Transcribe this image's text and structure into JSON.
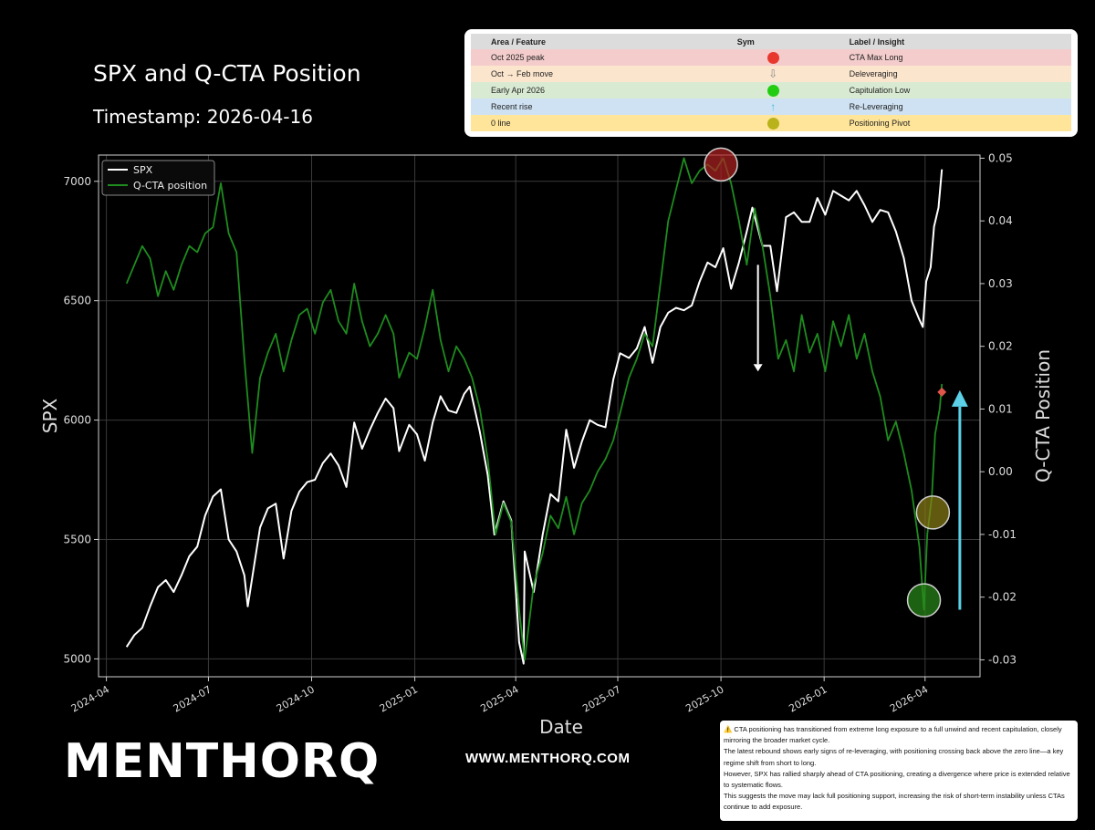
{
  "header": {
    "title": "SPX and Q-CTA Position",
    "timestamp": "Timestamp: 2026-04-16"
  },
  "table": {
    "headers": [
      "Area / Feature",
      "Sym",
      "Label / Insight"
    ],
    "rows": [
      {
        "area": "Oct 2025 peak",
        "sym": "red-circle",
        "label": "CTA Max Long",
        "bg": "#f4cccc"
      },
      {
        "area": "Oct → Feb move",
        "sym": "down-arrow",
        "label": "Deleveraging",
        "bg": "#fce5cd"
      },
      {
        "area": "Early Apr 2026",
        "sym": "green-circle",
        "label": "Capitulation Low",
        "bg": "#d9ead3"
      },
      {
        "area": "Recent rise",
        "sym": "up-arrow",
        "label": "Re-Leveraging",
        "bg": "#cfe2f3"
      },
      {
        "area": "0 line",
        "sym": "olive-circle",
        "label": "Positioning Pivot",
        "bg": "#ffe599"
      }
    ]
  },
  "chart_data": {
    "type": "line",
    "xlabel": "Date",
    "ylabel_left": "SPX",
    "ylabel_right": "Q-CTA Position",
    "xlim": [
      "2024-03-25",
      "2026-05-20"
    ],
    "ylim_left": [
      4925,
      7110
    ],
    "ylim_right": [
      -0.0327,
      0.0505
    ],
    "x_ticks": [
      "2024-04",
      "2024-07",
      "2024-10",
      "2025-01",
      "2025-04",
      "2025-07",
      "2025-10",
      "2026-01",
      "2026-04"
    ],
    "y_ticks_left": [
      5000,
      5500,
      6000,
      6500,
      7000
    ],
    "y_ticks_right": [
      -0.03,
      -0.02,
      -0.01,
      0.0,
      0.01,
      0.02,
      0.03,
      0.04,
      0.05
    ],
    "grid": true,
    "legend": {
      "position": "top-left",
      "entries": [
        "SPX",
        "Q-CTA position"
      ]
    },
    "series": [
      {
        "name": "SPX",
        "color": "#ffffff",
        "axis": "left",
        "points": [
          [
            "2024-04-19",
            5050
          ],
          [
            "2024-04-26",
            5100
          ],
          [
            "2024-05-03",
            5130
          ],
          [
            "2024-05-10",
            5220
          ],
          [
            "2024-05-17",
            5300
          ],
          [
            "2024-05-24",
            5330
          ],
          [
            "2024-05-31",
            5280
          ],
          [
            "2024-06-07",
            5350
          ],
          [
            "2024-06-14",
            5430
          ],
          [
            "2024-06-21",
            5470
          ],
          [
            "2024-06-28",
            5600
          ],
          [
            "2024-07-05",
            5680
          ],
          [
            "2024-07-12",
            5710
          ],
          [
            "2024-07-19",
            5500
          ],
          [
            "2024-07-26",
            5450
          ],
          [
            "2024-08-02",
            5350
          ],
          [
            "2024-08-05",
            5220
          ],
          [
            "2024-08-09",
            5340
          ],
          [
            "2024-08-16",
            5550
          ],
          [
            "2024-08-23",
            5630
          ],
          [
            "2024-08-30",
            5650
          ],
          [
            "2024-09-06",
            5420
          ],
          [
            "2024-09-13",
            5620
          ],
          [
            "2024-09-20",
            5700
          ],
          [
            "2024-09-27",
            5740
          ],
          [
            "2024-10-04",
            5750
          ],
          [
            "2024-10-11",
            5820
          ],
          [
            "2024-10-18",
            5860
          ],
          [
            "2024-10-25",
            5810
          ],
          [
            "2024-11-01",
            5720
          ],
          [
            "2024-11-08",
            5990
          ],
          [
            "2024-11-15",
            5880
          ],
          [
            "2024-11-22",
            5960
          ],
          [
            "2024-11-29",
            6030
          ],
          [
            "2024-12-06",
            6090
          ],
          [
            "2024-12-13",
            6050
          ],
          [
            "2024-12-18",
            5870
          ],
          [
            "2024-12-27",
            5980
          ],
          [
            "2025-01-03",
            5940
          ],
          [
            "2025-01-10",
            5830
          ],
          [
            "2025-01-17",
            5990
          ],
          [
            "2025-01-24",
            6100
          ],
          [
            "2025-01-31",
            6040
          ],
          [
            "2025-02-07",
            6030
          ],
          [
            "2025-02-14",
            6110
          ],
          [
            "2025-02-19",
            6140
          ],
          [
            "2025-02-28",
            5950
          ],
          [
            "2025-03-07",
            5770
          ],
          [
            "2025-03-13",
            5520
          ],
          [
            "2025-03-21",
            5660
          ],
          [
            "2025-03-28",
            5580
          ],
          [
            "2025-04-04",
            5070
          ],
          [
            "2025-04-08",
            4980
          ],
          [
            "2025-04-09",
            5450
          ],
          [
            "2025-04-17",
            5280
          ],
          [
            "2025-04-25",
            5520
          ],
          [
            "2025-05-02",
            5690
          ],
          [
            "2025-05-09",
            5660
          ],
          [
            "2025-05-16",
            5960
          ],
          [
            "2025-05-23",
            5800
          ],
          [
            "2025-05-30",
            5910
          ],
          [
            "2025-06-06",
            6000
          ],
          [
            "2025-06-13",
            5980
          ],
          [
            "2025-06-20",
            5970
          ],
          [
            "2025-06-27",
            6170
          ],
          [
            "2025-07-03",
            6280
          ],
          [
            "2025-07-11",
            6260
          ],
          [
            "2025-07-18",
            6300
          ],
          [
            "2025-07-25",
            6390
          ],
          [
            "2025-08-01",
            6240
          ],
          [
            "2025-08-08",
            6390
          ],
          [
            "2025-08-15",
            6450
          ],
          [
            "2025-08-22",
            6470
          ],
          [
            "2025-08-29",
            6460
          ],
          [
            "2025-09-05",
            6480
          ],
          [
            "2025-09-12",
            6580
          ],
          [
            "2025-09-19",
            6660
          ],
          [
            "2025-09-26",
            6640
          ],
          [
            "2025-10-03",
            6720
          ],
          [
            "2025-10-10",
            6550
          ],
          [
            "2025-10-17",
            6660
          ],
          [
            "2025-10-24",
            6790
          ],
          [
            "2025-10-29",
            6890
          ],
          [
            "2025-11-07",
            6730
          ],
          [
            "2025-11-14",
            6730
          ],
          [
            "2025-11-20",
            6540
          ],
          [
            "2025-11-28",
            6850
          ],
          [
            "2025-12-05",
            6870
          ],
          [
            "2025-12-12",
            6830
          ],
          [
            "2025-12-19",
            6830
          ],
          [
            "2025-12-26",
            6930
          ],
          [
            "2026-01-02",
            6860
          ],
          [
            "2026-01-09",
            6960
          ],
          [
            "2026-01-16",
            6940
          ],
          [
            "2026-01-23",
            6920
          ],
          [
            "2026-01-30",
            6960
          ],
          [
            "2026-02-06",
            6900
          ],
          [
            "2026-02-13",
            6830
          ],
          [
            "2026-02-20",
            6880
          ],
          [
            "2026-02-27",
            6870
          ],
          [
            "2026-03-06",
            6790
          ],
          [
            "2026-03-13",
            6680
          ],
          [
            "2026-03-20",
            6500
          ],
          [
            "2026-03-27",
            6420
          ],
          [
            "2026-03-30",
            6390
          ],
          [
            "2026-04-02",
            6580
          ],
          [
            "2026-04-06",
            6640
          ],
          [
            "2026-04-09",
            6810
          ],
          [
            "2026-04-13",
            6890
          ],
          [
            "2026-04-16",
            7050
          ]
        ]
      },
      {
        "name": "Q-CTA position",
        "color": "#1e8c1e",
        "axis": "right",
        "points": [
          [
            "2024-04-19",
            0.03
          ],
          [
            "2024-04-26",
            0.033
          ],
          [
            "2024-05-03",
            0.036
          ],
          [
            "2024-05-10",
            0.034
          ],
          [
            "2024-05-17",
            0.028
          ],
          [
            "2024-05-24",
            0.032
          ],
          [
            "2024-05-31",
            0.029
          ],
          [
            "2024-06-07",
            0.033
          ],
          [
            "2024-06-14",
            0.036
          ],
          [
            "2024-06-21",
            0.035
          ],
          [
            "2024-06-28",
            0.038
          ],
          [
            "2024-07-05",
            0.039
          ],
          [
            "2024-07-12",
            0.046
          ],
          [
            "2024-07-19",
            0.038
          ],
          [
            "2024-07-26",
            0.035
          ],
          [
            "2024-08-02",
            0.018
          ],
          [
            "2024-08-09",
            0.003
          ],
          [
            "2024-08-16",
            0.015
          ],
          [
            "2024-08-23",
            0.019
          ],
          [
            "2024-08-30",
            0.022
          ],
          [
            "2024-09-06",
            0.016
          ],
          [
            "2024-09-13",
            0.021
          ],
          [
            "2024-09-20",
            0.025
          ],
          [
            "2024-09-27",
            0.026
          ],
          [
            "2024-10-04",
            0.022
          ],
          [
            "2024-10-11",
            0.027
          ],
          [
            "2024-10-18",
            0.029
          ],
          [
            "2024-10-25",
            0.024
          ],
          [
            "2024-11-01",
            0.022
          ],
          [
            "2024-11-08",
            0.03
          ],
          [
            "2024-11-15",
            0.024
          ],
          [
            "2024-11-22",
            0.02
          ],
          [
            "2024-11-29",
            0.022
          ],
          [
            "2024-12-06",
            0.025
          ],
          [
            "2024-12-13",
            0.022
          ],
          [
            "2024-12-18",
            0.015
          ],
          [
            "2024-12-27",
            0.019
          ],
          [
            "2025-01-03",
            0.018
          ],
          [
            "2025-01-10",
            0.023
          ],
          [
            "2025-01-17",
            0.029
          ],
          [
            "2025-01-24",
            0.021
          ],
          [
            "2025-01-31",
            0.016
          ],
          [
            "2025-02-07",
            0.02
          ],
          [
            "2025-02-14",
            0.018
          ],
          [
            "2025-02-21",
            0.015
          ],
          [
            "2025-02-28",
            0.01
          ],
          [
            "2025-03-07",
            0.002
          ],
          [
            "2025-03-14",
            -0.01
          ],
          [
            "2025-03-21",
            -0.005
          ],
          [
            "2025-03-28",
            -0.008
          ],
          [
            "2025-04-04",
            -0.022
          ],
          [
            "2025-04-09",
            -0.03
          ],
          [
            "2025-04-17",
            -0.018
          ],
          [
            "2025-04-25",
            -0.013
          ],
          [
            "2025-05-02",
            -0.007
          ],
          [
            "2025-05-09",
            -0.009
          ],
          [
            "2025-05-16",
            -0.004
          ],
          [
            "2025-05-23",
            -0.01
          ],
          [
            "2025-05-30",
            -0.005
          ],
          [
            "2025-06-06",
            -0.003
          ],
          [
            "2025-06-13",
            0.0
          ],
          [
            "2025-06-20",
            0.002
          ],
          [
            "2025-06-27",
            0.005
          ],
          [
            "2025-07-04",
            0.01
          ],
          [
            "2025-07-11",
            0.015
          ],
          [
            "2025-07-18",
            0.018
          ],
          [
            "2025-07-25",
            0.022
          ],
          [
            "2025-08-01",
            0.02
          ],
          [
            "2025-08-08",
            0.03
          ],
          [
            "2025-08-15",
            0.04
          ],
          [
            "2025-08-22",
            0.045
          ],
          [
            "2025-08-29",
            0.05
          ],
          [
            "2025-09-05",
            0.046
          ],
          [
            "2025-09-12",
            0.048
          ],
          [
            "2025-09-19",
            0.049
          ],
          [
            "2025-09-26",
            0.048
          ],
          [
            "2025-10-03",
            0.05
          ],
          [
            "2025-10-10",
            0.046
          ],
          [
            "2025-10-17",
            0.04
          ],
          [
            "2025-10-24",
            0.033
          ],
          [
            "2025-10-31",
            0.042
          ],
          [
            "2025-11-07",
            0.036
          ],
          [
            "2025-11-14",
            0.028
          ],
          [
            "2025-11-21",
            0.018
          ],
          [
            "2025-11-28",
            0.021
          ],
          [
            "2025-12-05",
            0.016
          ],
          [
            "2025-12-12",
            0.025
          ],
          [
            "2025-12-19",
            0.019
          ],
          [
            "2025-12-26",
            0.022
          ],
          [
            "2026-01-02",
            0.016
          ],
          [
            "2026-01-09",
            0.024
          ],
          [
            "2026-01-16",
            0.02
          ],
          [
            "2026-01-23",
            0.025
          ],
          [
            "2026-01-30",
            0.018
          ],
          [
            "2026-02-06",
            0.022
          ],
          [
            "2026-02-13",
            0.016
          ],
          [
            "2026-02-20",
            0.012
          ],
          [
            "2026-02-27",
            0.005
          ],
          [
            "2026-03-06",
            0.008
          ],
          [
            "2026-03-13",
            0.003
          ],
          [
            "2026-03-20",
            -0.003
          ],
          [
            "2026-03-27",
            -0.012
          ],
          [
            "2026-03-31",
            -0.022
          ],
          [
            "2026-04-03",
            -0.01
          ],
          [
            "2026-04-07",
            -0.004
          ],
          [
            "2026-04-10",
            0.006
          ],
          [
            "2026-04-14",
            0.01
          ],
          [
            "2026-04-16",
            0.014
          ]
        ]
      }
    ],
    "annotations": [
      {
        "name": "Oct 2025 peak",
        "date": "2025-10-01",
        "value": 0.049,
        "axis": "right",
        "color": "#b22222"
      },
      {
        "name": "Early Apr 2026",
        "date": "2026-03-31",
        "value": -0.0205,
        "axis": "right",
        "color": "#2a8a1a"
      },
      {
        "name": "0 line",
        "date": "2026-04-08",
        "value": -0.0065,
        "axis": "right",
        "color": "#8a7f16"
      }
    ],
    "arrows": [
      {
        "name": "Oct → Feb move",
        "date": "2025-11-03",
        "from": 0.033,
        "to": 0.016,
        "color": "#ffffff"
      },
      {
        "name": "Recent rise",
        "date": "2026-05-02",
        "from": -0.022,
        "to": 0.013,
        "color": "#5bd0e6"
      }
    ],
    "marker": {
      "date": "2026-04-16",
      "value": 0.0127,
      "color": "#e0554a"
    }
  },
  "branding": {
    "logo": "MENTHORQ",
    "website": "WWW.MENTHORQ.COM"
  },
  "note": {
    "lines": [
      "⚠️ CTA positioning has transitioned from extreme long exposure to a full unwind and recent capitulation, closely mirroring the broader market cycle.",
      "The latest rebound shows early signs of re-leveraging, with positioning crossing back above the zero line—a key regime shift from short to long.",
      "However, SPX has rallied sharply ahead of CTA positioning, creating a divergence where price is extended relative to systematic flows.",
      "This suggests the move may lack full positioning support, increasing the risk of short-term instability unless CTAs continue to add exposure."
    ]
  }
}
